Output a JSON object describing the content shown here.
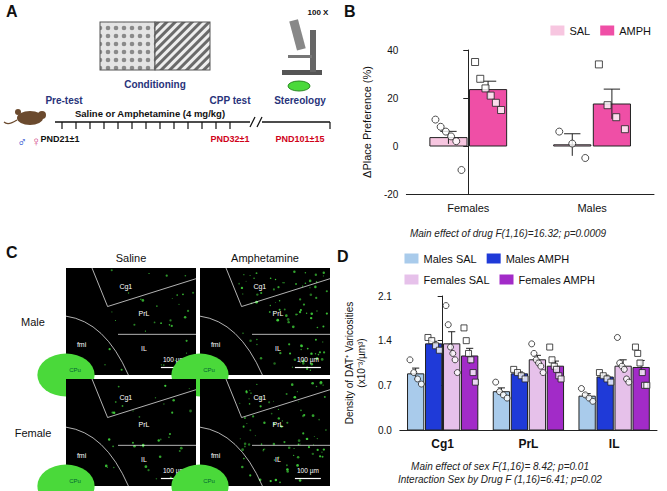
{
  "panel_letters": [
    "A",
    "B",
    "C",
    "D"
  ],
  "panel_a": {
    "stages": [
      "Pre-test",
      "Conditioning",
      "CPP test"
    ],
    "treatment": "Saline or Amphetamine (4 mg/kg)",
    "timepoints": [
      "PND21±1",
      "PND32±1",
      "PND101±15"
    ],
    "analysis": "Stereology",
    "magnification": "100 X",
    "sexes": [
      "♂",
      "♀"
    ]
  },
  "panel_c": {
    "columns": [
      "Saline",
      "Amphetamine"
    ],
    "rows": [
      "Male",
      "Female"
    ],
    "regions": [
      "Cg1",
      "PrL",
      "IL"
    ],
    "structures": [
      "fmi",
      "CPu"
    ],
    "scale_bar": "100 µm"
  },
  "chart_data": [
    {
      "type": "bar",
      "categories": [
        "Females",
        "Males"
      ],
      "y_label": "ΔPlace Preference (%)",
      "ylim": [
        -20,
        40
      ],
      "yticks": [
        -20,
        0,
        20,
        40
      ],
      "grid": false,
      "legend": "top-right",
      "annotations": [
        "Main effect of drug F(1,16)=16.32; p=0.0009"
      ],
      "series": [
        {
          "name": "SAL",
          "color": "#f7c6e0",
          "marker": "circle",
          "values": [
            3.5,
            0.5
          ],
          "errors": [
            2.6,
            4.6
          ],
          "points": [
            [
              11,
              8,
              6,
              4,
              2,
              -10
            ],
            [
              6,
              1,
              -5
            ]
          ]
        },
        {
          "name": "AMPH",
          "color": "#ef4fa6",
          "marker": "square",
          "values": [
            23.5,
            17.5
          ],
          "errors": [
            3.5,
            6.2
          ],
          "points": [
            [
              35,
              28,
              24,
              21,
              18,
              15
            ],
            [
              34,
              17,
              12,
              7
            ]
          ]
        }
      ]
    },
    {
      "type": "bar",
      "categories": [
        "Cg1",
        "PrL",
        "IL"
      ],
      "y_label": "Density of DAT⁺ Varicosities (x10⁻³/µm³)",
      "ylim": [
        0,
        2.1
      ],
      "yticks": [
        {
          "value": 0,
          "label": "0.0"
        },
        0.7,
        1.4,
        2.1
      ],
      "grid": false,
      "legend": "top",
      "annotations": [
        "Main effect of sex F(1,16)= 8.42; p=0.01",
        "Interaction Sex by Drug F (1,16)=6.41; p=0.02"
      ],
      "series": [
        {
          "name": "Males SAL",
          "color": "#a9cbeb",
          "marker": "circle",
          "values": [
            0.88,
            0.6,
            0.53
          ],
          "errors": [
            0.09,
            0.06,
            0.04
          ],
          "points": [
            [
              1.1,
              0.9,
              0.8,
              0.72
            ],
            [
              0.75,
              0.6,
              0.55,
              0.5
            ],
            [
              0.65,
              0.55,
              0.5,
              0.45
            ]
          ]
        },
        {
          "name": "Males AMPH",
          "color": "#1f3ad8",
          "marker": "square",
          "values": [
            1.35,
            0.88,
            0.83
          ],
          "errors": [
            0.04,
            0.03,
            0.03
          ],
          "points": [
            [
              1.45,
              1.4,
              1.32,
              1.25
            ],
            [
              0.95,
              0.9,
              0.85,
              0.8
            ],
            [
              0.9,
              0.85,
              0.8,
              0.75
            ]
          ]
        },
        {
          "name": "Females SAL",
          "color": "#e6c1ea",
          "marker": "circle",
          "values": [
            1.35,
            1.1,
            1.0
          ],
          "errors": [
            0.19,
            0.07,
            0.1
          ],
          "points": [
            [
              1.95,
              1.65,
              1.3,
              1.2,
              1.1,
              0.9
            ],
            [
              1.35,
              1.2,
              1.1,
              1.05,
              1.0,
              0.9
            ],
            [
              1.45,
              1.05,
              1.0,
              0.95,
              0.8,
              0.75
            ]
          ]
        },
        {
          "name": "Females AMPH",
          "color": "#a22bc8",
          "marker": "square",
          "values": [
            1.16,
            1.0,
            0.98
          ],
          "errors": [
            0.12,
            0.08,
            0.11
          ],
          "points": [
            [
              1.6,
              1.4,
              1.2,
              1.1,
              0.9,
              0.75
            ],
            [
              1.3,
              1.1,
              1.0,
              0.95,
              0.85,
              0.8
            ],
            [
              1.3,
              1.2,
              1.05,
              0.9,
              0.7,
              0.7
            ]
          ]
        }
      ]
    }
  ]
}
